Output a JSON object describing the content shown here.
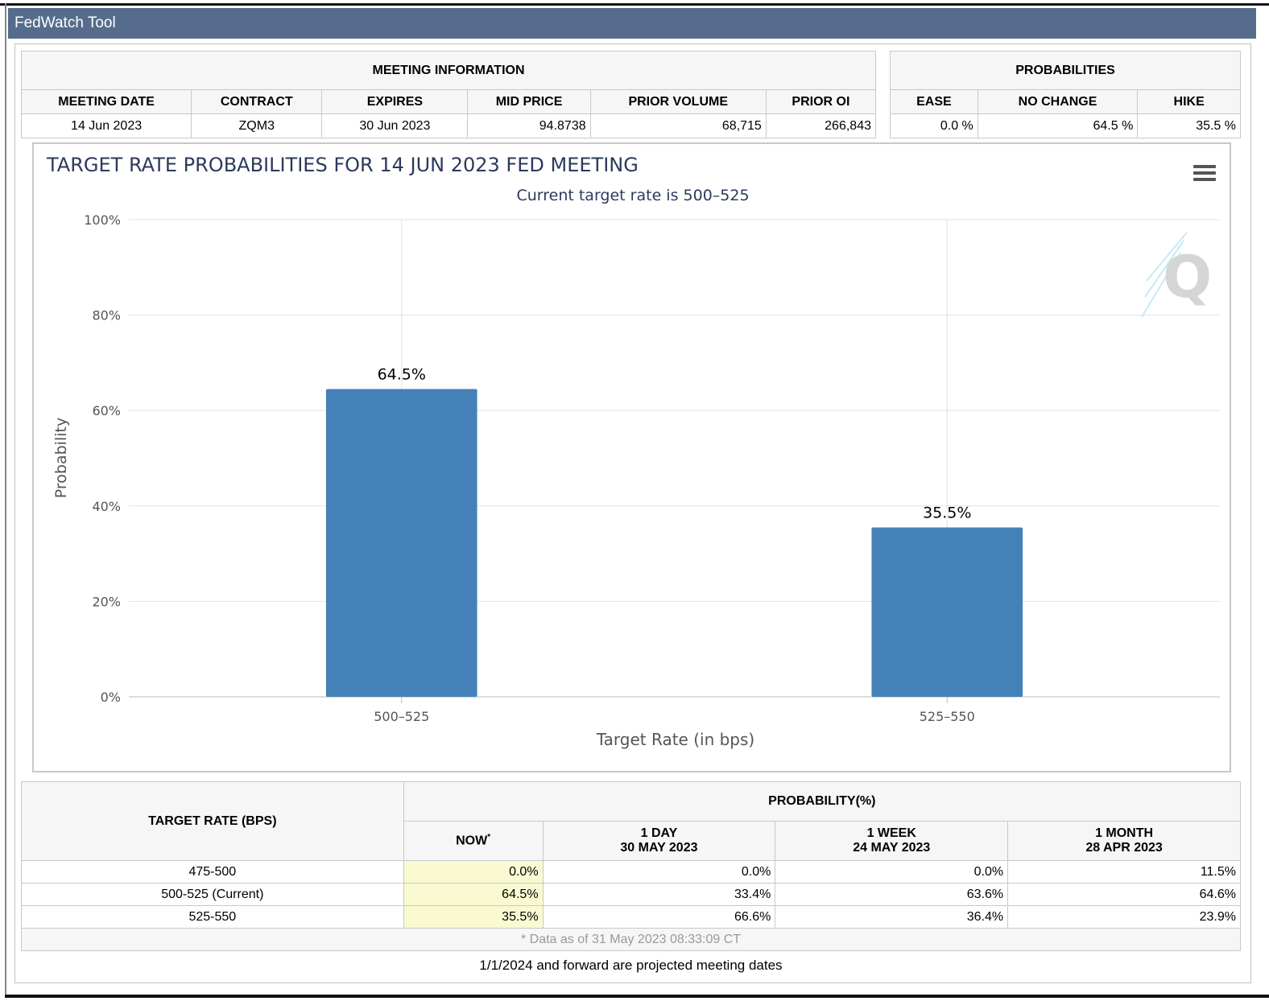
{
  "window": {
    "title": "FedWatch Tool"
  },
  "meeting_info": {
    "section_title": "MEETING INFORMATION",
    "headers": [
      "MEETING DATE",
      "CONTRACT",
      "EXPIRES",
      "MID PRICE",
      "PRIOR VOLUME",
      "PRIOR OI"
    ],
    "values": [
      "14 Jun 2023",
      "ZQM3",
      "30 Jun 2023",
      "94.8738",
      "68,715",
      "266,843"
    ]
  },
  "probabilities": {
    "section_title": "PROBABILITIES",
    "headers": [
      "EASE",
      "NO CHANGE",
      "HIKE"
    ],
    "values": [
      "0.0 %",
      "64.5 %",
      "35.5 %"
    ]
  },
  "chart_data": {
    "type": "bar",
    "title": "TARGET RATE PROBABILITIES FOR 14 JUN 2023 FED MEETING",
    "subtitle": "Current target rate is 500–525",
    "xlabel": "Target Rate (in bps)",
    "ylabel": "Probability",
    "categories": [
      "500–525",
      "525–550"
    ],
    "values": [
      64.5,
      35.5
    ],
    "data_labels": [
      "64.5%",
      "35.5%"
    ],
    "ylim": [
      0,
      100
    ],
    "yticks": [
      "0%",
      "20%",
      "40%",
      "60%",
      "80%",
      "100%"
    ],
    "grid": true,
    "bar_color": "#4381b8"
  },
  "bottom_table": {
    "target_rate_header": "TARGET RATE (BPS)",
    "probability_header": "PROBABILITY(%)",
    "columns": [
      {
        "line1": "NOW",
        "line2": "",
        "sup": "*"
      },
      {
        "line1": "1 DAY",
        "line2": "30 MAY 2023",
        "sup": ""
      },
      {
        "line1": "1 WEEK",
        "line2": "24 MAY 2023",
        "sup": ""
      },
      {
        "line1": "1 MONTH",
        "line2": "28 APR 2023",
        "sup": ""
      }
    ],
    "rows": [
      {
        "rate": "475-500",
        "values": [
          "0.0%",
          "0.0%",
          "0.0%",
          "11.5%"
        ]
      },
      {
        "rate": "500-525 (Current)",
        "values": [
          "64.5%",
          "33.4%",
          "63.6%",
          "64.6%"
        ]
      },
      {
        "rate": "525-550",
        "values": [
          "35.5%",
          "66.6%",
          "36.4%",
          "23.9%"
        ]
      }
    ],
    "footnote": "* Data as of 31 May 2023 08:33:09 CT"
  },
  "projected_note": "1/1/2024 and forward are projected meeting dates",
  "icons": {
    "menu": "hamburger-menu-icon",
    "watermark": "cme-q-logo"
  }
}
